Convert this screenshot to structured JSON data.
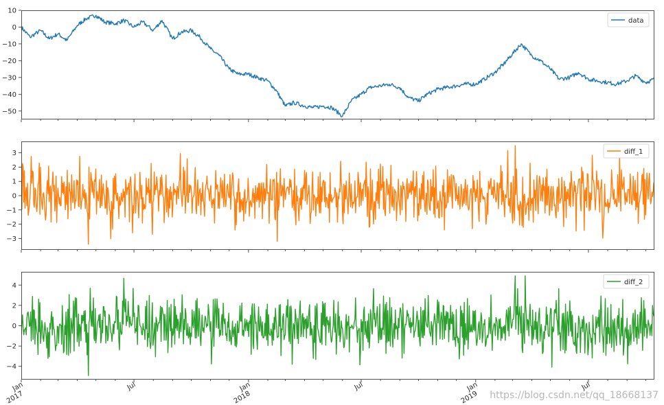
{
  "colors": {
    "data": "#1f77b4",
    "diff_1": "#ff7f0e",
    "diff_2": "#2ca02c",
    "axes": "#262626"
  },
  "chart_data": [
    {
      "type": "line",
      "legend_placement": "top-right",
      "grid": false,
      "x_range": [
        "2017-01-01",
        "2019-10-15"
      ],
      "ylim": [
        -55,
        10
      ],
      "yticks": [
        "10",
        "0",
        "−10",
        "−20",
        "−30",
        "−40",
        "−50"
      ],
      "series": [
        {
          "name": "data",
          "x": [
            "2017-01-01",
            "2017-01-15",
            "2017-02-01",
            "2017-02-15",
            "2017-03-01",
            "2017-03-15",
            "2017-04-01",
            "2017-04-15",
            "2017-05-01",
            "2017-05-15",
            "2017-06-01",
            "2017-06-15",
            "2017-07-01",
            "2017-07-15",
            "2017-08-01",
            "2017-08-15",
            "2017-09-01",
            "2017-09-15",
            "2017-10-01",
            "2017-10-15",
            "2017-11-01",
            "2017-11-15",
            "2017-12-01",
            "2017-12-15",
            "2018-01-01",
            "2018-01-15",
            "2018-02-01",
            "2018-02-15",
            "2018-03-01",
            "2018-03-15",
            "2018-04-01",
            "2018-04-15",
            "2018-05-01",
            "2018-05-15",
            "2018-06-01",
            "2018-06-15",
            "2018-07-01",
            "2018-07-15",
            "2018-08-01",
            "2018-08-15",
            "2018-09-01",
            "2018-09-15",
            "2018-10-01",
            "2018-10-15",
            "2018-11-01",
            "2018-11-15",
            "2018-12-01",
            "2018-12-15",
            "2019-01-01",
            "2019-01-15",
            "2019-02-01",
            "2019-02-15",
            "2019-03-01",
            "2019-03-15",
            "2019-04-01",
            "2019-04-15",
            "2019-05-01",
            "2019-05-15",
            "2019-06-01",
            "2019-06-15",
            "2019-07-01",
            "2019-07-15",
            "2019-08-01",
            "2019-08-15",
            "2019-09-01",
            "2019-09-15",
            "2019-10-01",
            "2019-10-15"
          ],
          "y": [
            0,
            -6,
            -2,
            -7,
            -4,
            -8,
            1,
            5,
            7,
            3,
            2,
            4,
            0,
            3,
            -2,
            4,
            -7,
            -3,
            -2,
            -6,
            -13,
            -17,
            -25,
            -28,
            -28,
            -30,
            -32,
            -38,
            -47,
            -45,
            -47,
            -48,
            -47,
            -48,
            -53,
            -44,
            -40,
            -36,
            -35,
            -34,
            -36,
            -42,
            -44,
            -40,
            -37,
            -36,
            -35,
            -34,
            -34,
            -31,
            -27,
            -22,
            -16,
            -10,
            -17,
            -20,
            -25,
            -31,
            -30,
            -27,
            -31,
            -32,
            -33,
            -34,
            -32,
            -29,
            -33,
            -31
          ]
        }
      ]
    },
    {
      "type": "line",
      "legend_placement": "top-right",
      "grid": false,
      "x_range": [
        "2017-01-01",
        "2019-10-15"
      ],
      "ylim": [
        -3.8,
        3.8
      ],
      "yticks": [
        "3",
        "2",
        "1",
        "0",
        "−1",
        "−2",
        "−3"
      ],
      "series": [
        {
          "name": "diff_1",
          "summary": {
            "min": -3.4,
            "max": 3.5,
            "mean": 0
          }
        }
      ]
    },
    {
      "type": "line",
      "legend_placement": "top-right",
      "grid": false,
      "x_range": [
        "2017-01-01",
        "2019-10-15"
      ],
      "ylim": [
        -5.3,
        5.3
      ],
      "yticks": [
        "4",
        "2",
        "0",
        "−2",
        "−4"
      ],
      "series": [
        {
          "name": "diff_2",
          "summary": {
            "min": -4.9,
            "max": 4.9,
            "mean": 0
          }
        }
      ]
    }
  ],
  "x_axis": {
    "ticks": [
      {
        "date": "2017-01-01",
        "line1": "Jan",
        "line2": "2017"
      },
      {
        "date": "2017-07-01",
        "line1": "Jul",
        "line2": ""
      },
      {
        "date": "2018-01-01",
        "line1": "Jan",
        "line2": "2018"
      },
      {
        "date": "2018-07-01",
        "line1": "Jul",
        "line2": ""
      },
      {
        "date": "2019-01-01",
        "line1": "Jan",
        "line2": "2019"
      },
      {
        "date": "2019-07-01",
        "line1": "Jul",
        "line2": ""
      }
    ]
  },
  "watermark": "https://blog.csdn.net/qq_18668137"
}
